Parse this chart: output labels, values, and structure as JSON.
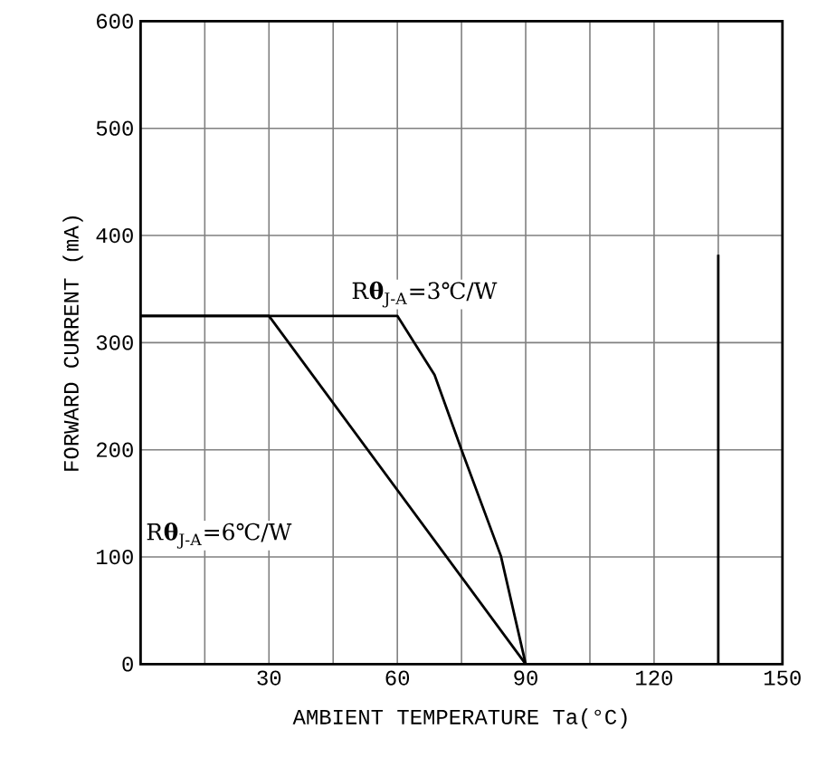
{
  "chart_data": {
    "type": "line",
    "xlabel": "AMBIENT TEMPERATURE Ta(°C)",
    "ylabel": "FORWARD CURRENT (mA)",
    "xlim": [
      0,
      150
    ],
    "ylim": [
      0,
      600
    ],
    "xticks": [
      {
        "value": 15,
        "label": null
      },
      30,
      {
        "value": 45,
        "label": null
      },
      60,
      {
        "value": 75,
        "label": null
      },
      90,
      {
        "value": 105,
        "label": null
      },
      120,
      {
        "value": 135,
        "label": null
      },
      150
    ],
    "yticks": [
      0,
      100,
      200,
      300,
      400,
      500,
      600
    ],
    "grid": true,
    "marker": "none",
    "line_style": "solid",
    "series": [
      {
        "color": "#000000",
        "x": [
          0,
          60,
          68.7,
          75,
          84.2,
          90
        ],
        "values": [
          325,
          325,
          270,
          200,
          101,
          0
        ]
      },
      {
        "color": "#000000",
        "x": [
          0,
          30,
          90
        ],
        "values": [
          325,
          325,
          0
        ]
      },
      {
        "color": "#000000",
        "x": [
          135,
          135
        ],
        "values": [
          0,
          382
        ]
      }
    ],
    "annotations": [
      "R**θ**$_{J-A}$=3℃/W",
      "R**θ**$_{J-A}$=6℃/W"
    ]
  }
}
